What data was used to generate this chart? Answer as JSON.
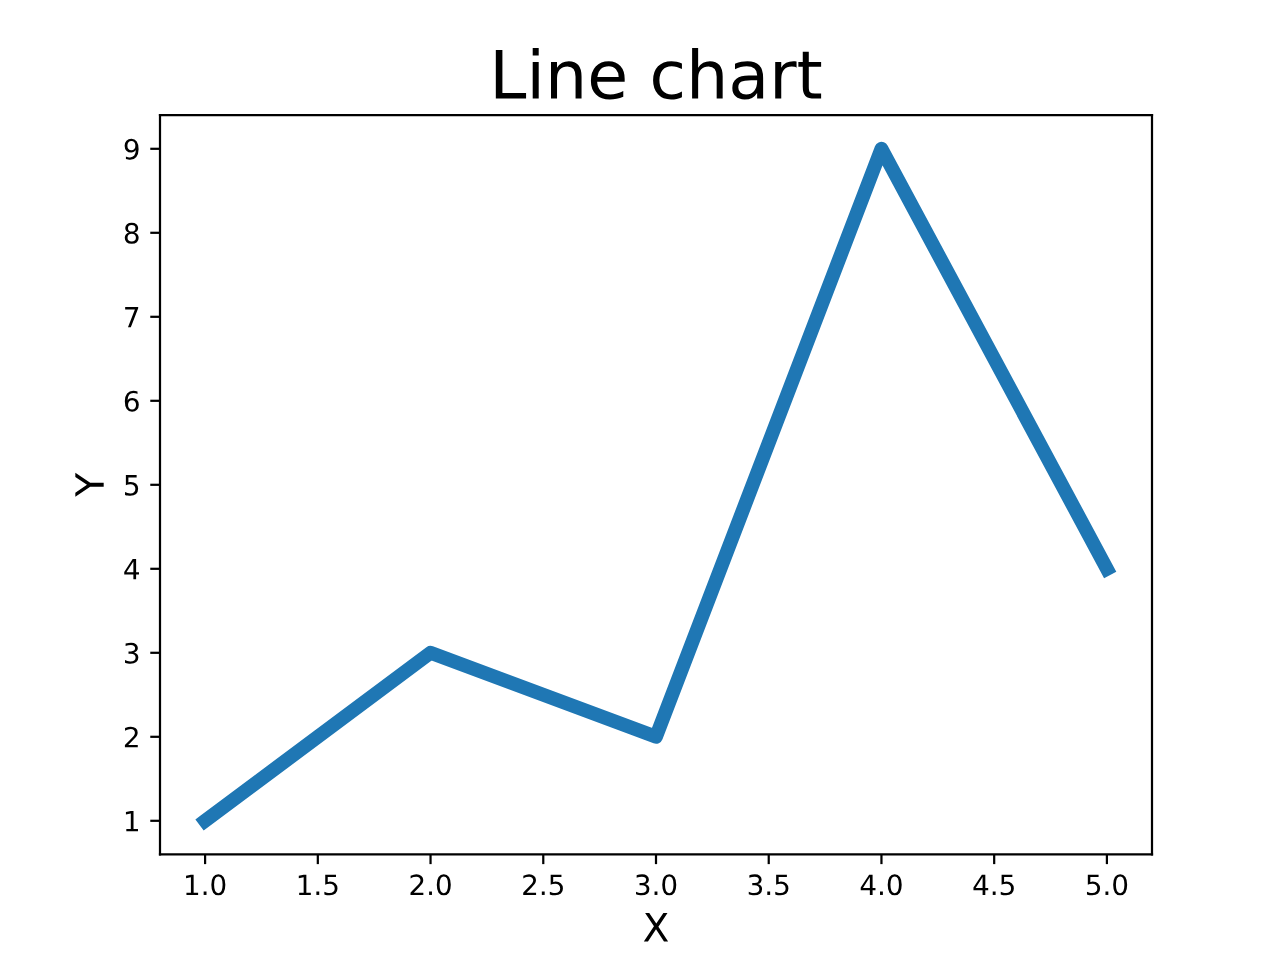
{
  "chart_data": {
    "type": "line",
    "title": "Line chart",
    "xlabel": "X",
    "ylabel": "Y",
    "x": [
      1,
      2,
      3,
      4,
      5
    ],
    "series": [
      {
        "color": "#1f77b4",
        "values": [
          1,
          3,
          2,
          9,
          4
        ]
      }
    ],
    "xlim": [
      0.8,
      5.2
    ],
    "ylim": [
      0.6,
      9.4
    ],
    "xticks": [
      {
        "value": 1,
        "label": "1.0"
      },
      {
        "value": 1.5,
        "label": "1.5"
      },
      {
        "value": 2,
        "label": "2.0"
      },
      {
        "value": 2.5,
        "label": "2.5"
      },
      {
        "value": 3,
        "label": "3.0"
      },
      {
        "value": 3.5,
        "label": "3.5"
      },
      {
        "value": 4,
        "label": "4.0"
      },
      {
        "value": 4.5,
        "label": "4.5"
      },
      {
        "value": 5,
        "label": "5.0"
      }
    ],
    "yticks": [
      1,
      2,
      3,
      4,
      5,
      6,
      7,
      8,
      9
    ],
    "grid": false,
    "legend": false,
    "marker": "none",
    "line_style": "solid"
  }
}
